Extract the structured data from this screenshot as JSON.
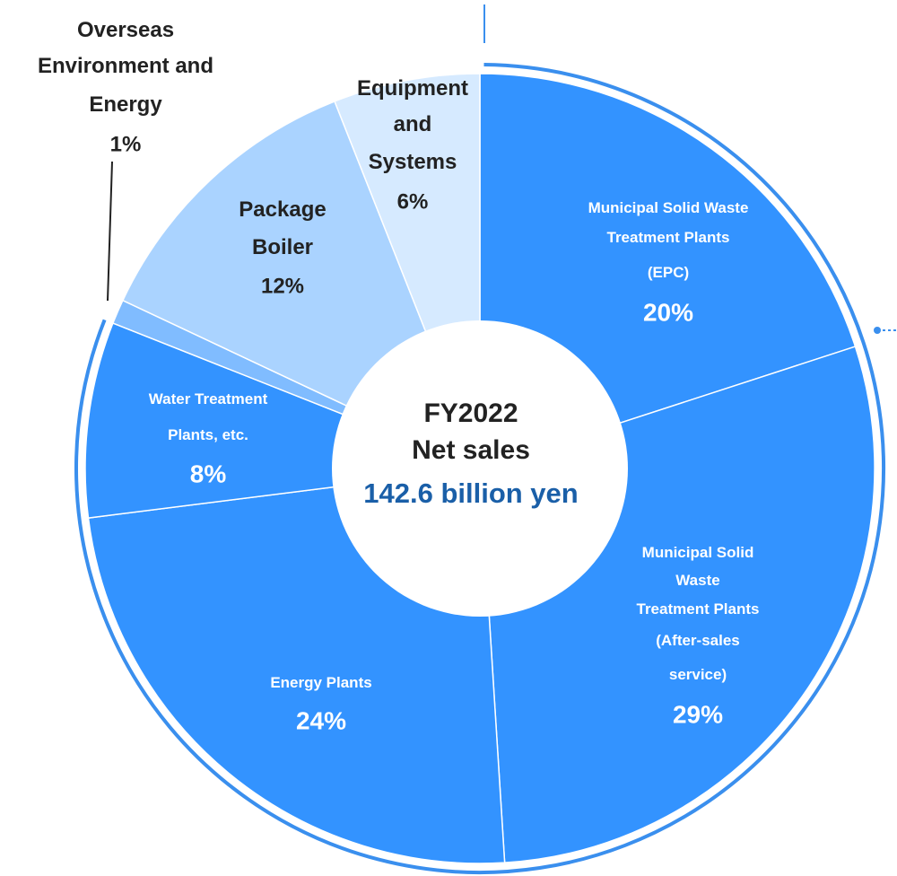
{
  "chart_data": {
    "type": "donut",
    "center_text": [
      "FY2022",
      "Net sales",
      "142.6 billion yen"
    ],
    "categories": [
      "Municipal Solid Waste\nTreatment Plants\n(EPC)",
      "Municipal Solid\nWaste\nTreatment Plants\n(After-sales\nservice)",
      "Energy Plants",
      "Water Treatment\nPlants, etc.",
      "Overseas\nEnvironment and\nEnergy",
      "Package\nBoiler",
      "Equipment\nand\nSystems"
    ],
    "values": [
      20,
      29,
      24,
      8,
      1,
      12,
      6
    ],
    "value_labels": [
      "20%",
      "29%",
      "24%",
      "8%",
      "1%",
      "12%",
      "6%"
    ],
    "colors": [
      "#3393ff",
      "#3393ff",
      "#3393ff",
      "#3393ff",
      "#80bcff",
      "#aad3ff",
      "#d6eaff"
    ]
  }
}
